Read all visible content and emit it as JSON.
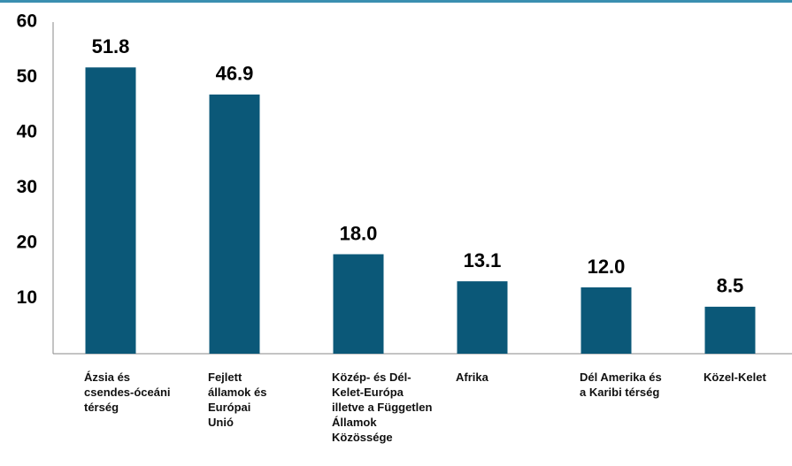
{
  "chart_data": {
    "type": "bar",
    "categories": [
      "Ázsia és\ncsendes-óceáni\ntérség",
      "Fejlett\nállamok és\nEurópai\nUnió",
      "Közép- és Dél-\nKelet-Európa\nilletve a Független\nÁllamok\nKözössége",
      "Afrika",
      "Dél Amerika és\na Karibi térség",
      "Közel-Kelet"
    ],
    "values": [
      51.8,
      46.9,
      18.0,
      13.1,
      12.0,
      8.5
    ],
    "value_labels": [
      "51.8",
      "46.9",
      "18.0",
      "13.1",
      "12.0",
      "8.5"
    ],
    "color": "#0b5878",
    "ylim": [
      0,
      60
    ],
    "yticks": [
      10,
      20,
      30,
      40,
      50,
      60
    ],
    "grid": false
  }
}
